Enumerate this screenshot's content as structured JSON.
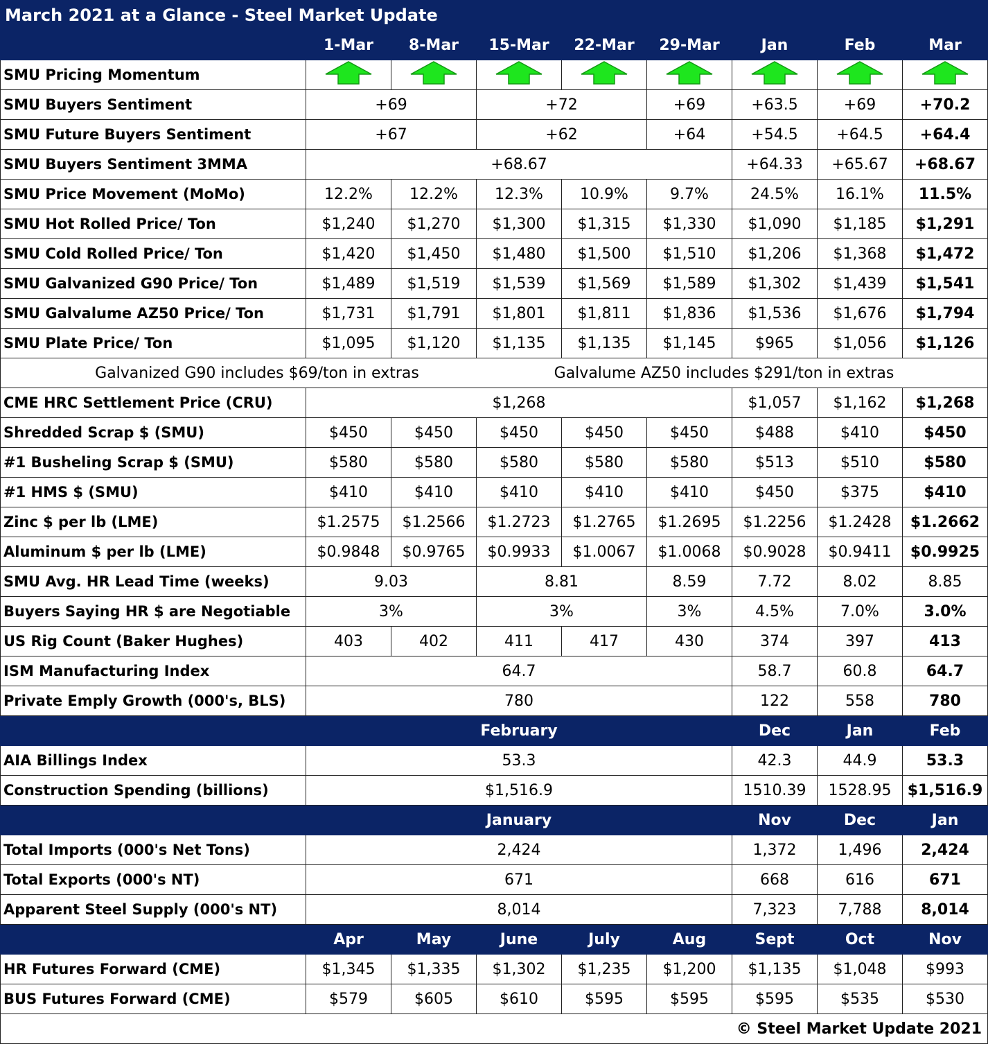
{
  "title": "March 2021 at a Glance - Steel Market Update",
  "rows": [
    {
      "header": [
        "1-Mar",
        "8-Mar",
        "15-Mar",
        "22-Mar",
        "29-Mar",
        "Jan",
        "Feb",
        "Mar"
      ]
    },
    {
      "label": "SMU Pricing Momentum"
    },
    {
      "label": "SMU Buyers Sentiment",
      "cells": [
        "+69",
        "+72",
        "+69",
        "+63.5",
        "+69",
        "+70.2"
      ]
    },
    {
      "label": "SMU Future Buyers Sentiment",
      "cells": [
        "+67",
        "+62",
        "+64",
        "+54.5",
        "+64.5",
        "+64.4"
      ]
    },
    {
      "label": "SMU Buyers Sentiment 3MMA",
      "cells": [
        "+68.67",
        "+64.33",
        "+65.67",
        "+68.67"
      ]
    },
    {
      "label": "SMU Price Movement (MoMo)",
      "cells": [
        "12.2%",
        "12.2%",
        "12.3%",
        "10.9%",
        "9.7%",
        "24.5%",
        "16.1%",
        "11.5%"
      ]
    },
    {
      "label": "SMU Hot Rolled Price/ Ton",
      "cells": [
        "$1,240",
        "$1,270",
        "$1,300",
        "$1,315",
        "$1,330",
        "$1,090",
        "$1,185",
        "$1,291"
      ]
    },
    {
      "label": "SMU Cold Rolled Price/ Ton",
      "cells": [
        "$1,420",
        "$1,450",
        "$1,480",
        "$1,500",
        "$1,510",
        "$1,206",
        "$1,368",
        "$1,472"
      ]
    },
    {
      "label": "SMU Galvanized G90 Price/ Ton",
      "cells": [
        "$1,489",
        "$1,519",
        "$1,539",
        "$1,569",
        "$1,589",
        "$1,302",
        "$1,439",
        "$1,541"
      ]
    },
    {
      "label": "SMU Galvalume AZ50 Price/ Ton",
      "cells": [
        "$1,731",
        "$1,791",
        "$1,801",
        "$1,811",
        "$1,836",
        "$1,536",
        "$1,676",
        "$1,794"
      ]
    },
    {
      "label": "SMU Plate Price/ Ton",
      "cells": [
        "$1,095",
        "$1,120",
        "$1,135",
        "$1,135",
        "$1,145",
        "$965",
        "$1,056",
        "$1,126"
      ]
    },
    {
      "note": [
        "Galvanized G90 includes $69/ton in extras",
        "Galvalume AZ50 includes $291/ton in extras"
      ]
    },
    {
      "label": "CME HRC Settlement Price (CRU)",
      "cells": [
        "$1,268",
        "$1,057",
        "$1,162",
        "$1,268"
      ]
    },
    {
      "label": "Shredded Scrap $ (SMU)",
      "cells": [
        "$450",
        "$450",
        "$450",
        "$450",
        "$450",
        "$488",
        "$410",
        "$450"
      ]
    },
    {
      "label": "#1 Busheling Scrap $ (SMU)",
      "cells": [
        "$580",
        "$580",
        "$580",
        "$580",
        "$580",
        "$513",
        "$510",
        "$580"
      ]
    },
    {
      "label": "#1 HMS $ (SMU)",
      "cells": [
        "$410",
        "$410",
        "$410",
        "$410",
        "$410",
        "$450",
        "$375",
        "$410"
      ]
    },
    {
      "label": "Zinc $ per lb (LME)",
      "cells": [
        "$1.2575",
        "$1.2566",
        "$1.2723",
        "$1.2765",
        "$1.2695",
        "$1.2256",
        "$1.2428",
        "$1.2662"
      ]
    },
    {
      "label": "Aluminum $ per lb (LME)",
      "cells": [
        "$0.9848",
        "$0.9765",
        "$0.9933",
        "$1.0067",
        "$1.0068",
        "$0.9028",
        "$0.9411",
        "$0.9925"
      ]
    },
    {
      "label": "SMU Avg. HR Lead Time (weeks)",
      "cells": [
        "9.03",
        "8.81",
        "8.59",
        "7.72",
        "8.02",
        "8.85"
      ]
    },
    {
      "label": "Buyers Saying HR $ are Negotiable",
      "cells": [
        "3%",
        "3%",
        "3%",
        "4.5%",
        "7.0%",
        "3.0%"
      ]
    },
    {
      "label": "US Rig Count (Baker Hughes)",
      "cells": [
        "403",
        "402",
        "411",
        "417",
        "430",
        "374",
        "397",
        "413"
      ]
    },
    {
      "label": "ISM Manufacturing Index",
      "cells": [
        "64.7",
        "58.7",
        "60.8",
        "64.7"
      ]
    },
    {
      "label": "Private Emply Growth (000's, BLS)",
      "cells": [
        "780",
        "122",
        "558",
        "780"
      ]
    },
    {
      "header": [
        "February",
        "Dec",
        "Jan",
        "Feb"
      ]
    },
    {
      "label": "AIA Billings Index",
      "cells": [
        "53.3",
        "42.3",
        "44.9",
        "53.3"
      ]
    },
    {
      "label": "Construction Spending (billions)",
      "cells": [
        "$1,516.9",
        "1510.39",
        "1528.95",
        "$1,516.9"
      ]
    },
    {
      "header": [
        "January",
        "Nov",
        "Dec",
        "Jan"
      ]
    },
    {
      "label": "Total Imports (000's Net Tons)",
      "cells": [
        "2,424",
        "1,372",
        "1,496",
        "2,424"
      ]
    },
    {
      "label": "Total Exports (000's NT)",
      "cells": [
        "671",
        "668",
        "616",
        "671"
      ]
    },
    {
      "label": "Apparent Steel Supply (000's NT)",
      "cells": [
        "8,014",
        "7,323",
        "7,788",
        "8,014"
      ]
    },
    {
      "header": [
        "Apr",
        "May",
        "June",
        "July",
        "Aug",
        "Sept",
        "Oct",
        "Nov"
      ]
    },
    {
      "label": "HR Futures Forward (CME)",
      "cells": [
        "$1,345",
        "$1,335",
        "$1,302",
        "$1,235",
        "$1,200",
        "$1,135",
        "$1,048",
        "$993"
      ]
    },
    {
      "label": "BUS Futures Forward (CME)",
      "cells": [
        "$579",
        "$605",
        "$610",
        "$595",
        "$595",
        "$595",
        "$535",
        "$530"
      ]
    }
  ],
  "footer": "© Steel Market Update 2021"
}
